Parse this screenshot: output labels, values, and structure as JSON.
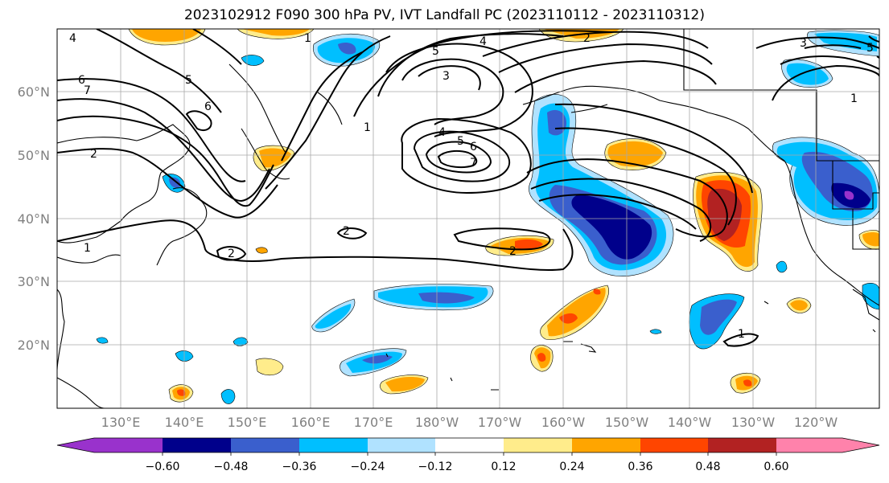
{
  "title": "2023102912 F090 300 hPa PV, IVT Landfall PC (2023110112 - 2023110312)",
  "lat_labels": [
    "60°N",
    "50°N",
    "40°N",
    "30°N",
    "20°N"
  ],
  "lon_labels": [
    "130°E",
    "140°E",
    "150°E",
    "160°E",
    "170°E",
    "180°W",
    "170°W",
    "160°W",
    "150°W",
    "140°W",
    "130°W",
    "120°W"
  ],
  "colorbar": {
    "ticks": [
      "−0.60",
      "−0.48",
      "−0.36",
      "−0.24",
      "−0.12",
      "0.12",
      "0.24",
      "0.36",
      "0.48",
      "0.60"
    ],
    "colors": [
      "#9932cc",
      "#00008b",
      "#3a5fcd",
      "#00bfff",
      "#b0e2ff",
      "#ffffff",
      "#ffec8b",
      "#ffa500",
      "#ff4500",
      "#b22222",
      "#ff82ab"
    ]
  },
  "contour_labels": [
    "4",
    "6",
    "7",
    "5",
    "2",
    "6",
    "1",
    "1",
    "5",
    "3",
    "4",
    "1",
    "4",
    "5",
    "6",
    "7",
    "2",
    "2",
    "2",
    "2",
    "3",
    "5",
    "1",
    "1"
  ],
  "fill_colors": {
    "neg_light": "#b0e2ff",
    "neg_cyan": "#00bfff",
    "neg_blue": "#3a5fcd",
    "neg_navy": "#00008b",
    "neg_purple": "#9932cc",
    "pos_yellow": "#ffec8b",
    "pos_orange": "#ffa500",
    "pos_red": "#ff4500",
    "pos_dark": "#b22222"
  }
}
